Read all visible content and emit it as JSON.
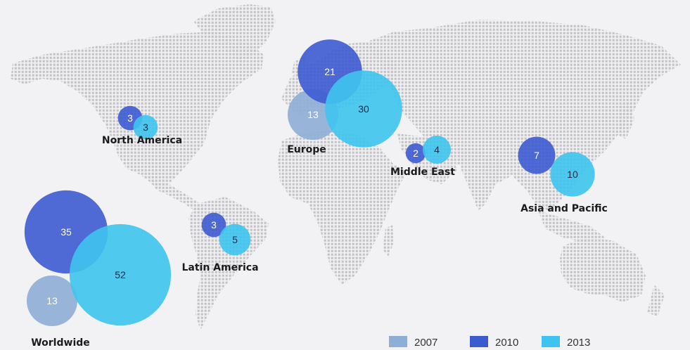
{
  "chart_data": {
    "type": "bubble-map",
    "series": [
      {
        "name": "2007",
        "color": "#8eaed6"
      },
      {
        "name": "2010",
        "color": "#3d5bd1"
      },
      {
        "name": "2013",
        "color": "#3ec4ee"
      }
    ],
    "regions": [
      {
        "name": "North America",
        "values": {
          "2010": 3,
          "2013": 3
        }
      },
      {
        "name": "Europe",
        "values": {
          "2007": 13,
          "2010": 21,
          "2013": 30
        }
      },
      {
        "name": "Middle East",
        "values": {
          "2010": 2,
          "2013": 4
        }
      },
      {
        "name": "Asia and Pacific",
        "values": {
          "2010": 7,
          "2013": 10
        }
      },
      {
        "name": "Latin America",
        "values": {
          "2010": 3,
          "2013": 5
        }
      },
      {
        "name": "Worldwide",
        "values": {
          "2007": 13,
          "2010": 35,
          "2013": 52
        }
      }
    ]
  }
}
